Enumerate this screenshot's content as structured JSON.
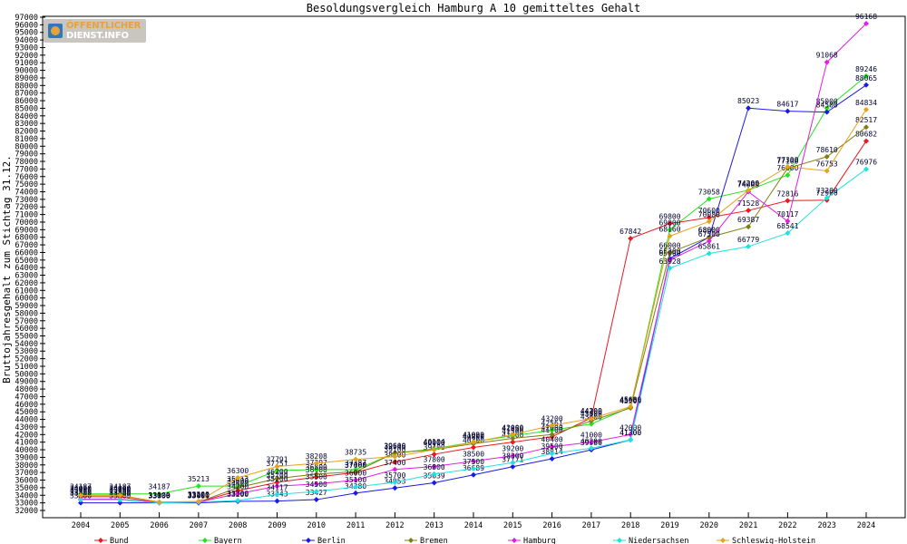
{
  "logo": {
    "line1": "ÖFFENTLICHER",
    "line2": "DIENST.INFO"
  },
  "chart_data": {
    "type": "line",
    "title": "Besoldungsvergleich Hamburg A 10 gemitteltes Gehalt",
    "xlabel": "",
    "ylabel": "Bruttojahresgehalt zum Stichtag 31.12.",
    "ylim": [
      32000,
      97000
    ],
    "ytick_step": 1000,
    "grid": false,
    "legend": "bottom",
    "categories": [
      "2004",
      "2005",
      "2006",
      "2007",
      "2008",
      "2009",
      "2010",
      "2011",
      "2012",
      "2013",
      "2014",
      "2015",
      "2016",
      "2017",
      "2018",
      "2019",
      "2020",
      "2021",
      "2022",
      "2023",
      "2024"
    ],
    "series": [
      {
        "name": "Bund",
        "color": "#e8191f",
        "values": [
          33800,
          33800,
          33000,
          33100,
          34600,
          35700,
          36400,
          37000,
          38400,
          39400,
          40300,
          41000,
          41700,
          44200,
          67842,
          69800,
          70600,
          71528,
          72816,
          72900,
          80682
        ]
      },
      {
        "name": "Bayern",
        "color": "#22e41e",
        "values": [
          34187,
          34187,
          34187,
          35213,
          35213,
          37251,
          37397,
          37387,
          39546,
          40104,
          41022,
          41850,
          42561,
          43400,
          45600,
          69000,
          73058,
          74200,
          76200,
          85000,
          89246
        ]
      },
      {
        "name": "Berlin",
        "color": "#1a1ae2",
        "values": [
          33000,
          33000,
          33000,
          33000,
          33200,
          33243,
          33427,
          34280,
          34953,
          35639,
          36689,
          37771,
          38814,
          39986,
          41300,
          65200,
          68000,
          85023,
          84617,
          84500,
          88065
        ]
      },
      {
        "name": "Bremen",
        "color": "#7f7f10",
        "values": [
          34000,
          34000,
          33100,
          33100,
          35000,
          36200,
          36800,
          37100,
          39600,
          40000,
          40800,
          41500,
          42000,
          43800,
          45500,
          66000,
          68000,
          69387,
          77100,
          78610,
          82517
        ]
      },
      {
        "name": "Hamburg",
        "color": "#e21ee2",
        "values": [
          33500,
          33500,
          33000,
          33100,
          34200,
          35200,
          35500,
          36000,
          37400,
          37800,
          38500,
          39200,
          40400,
          41000,
          42000,
          65000,
          67500,
          74000,
          70117,
          91068,
          96168
        ]
      },
      {
        "name": "Niedersachsen",
        "color": "#1ee2e2",
        "values": [
          33400,
          33400,
          33000,
          33100,
          33300,
          34117,
          34500,
          35100,
          35700,
          36800,
          37500,
          38300,
          39500,
          40200,
          41300,
          63928,
          65861,
          66779,
          68541,
          73200,
          76976
        ]
      },
      {
        "name": "Schleswig-Holstein",
        "color": "#e5a21b",
        "values": [
          34000,
          34000,
          33100,
          33200,
          36300,
          37791,
          38208,
          38735,
          39100,
          40000,
          41000,
          42000,
          43200,
          44100,
          45680,
          68160,
          70080,
          74200,
          77300,
          76753,
          84834
        ]
      }
    ]
  }
}
